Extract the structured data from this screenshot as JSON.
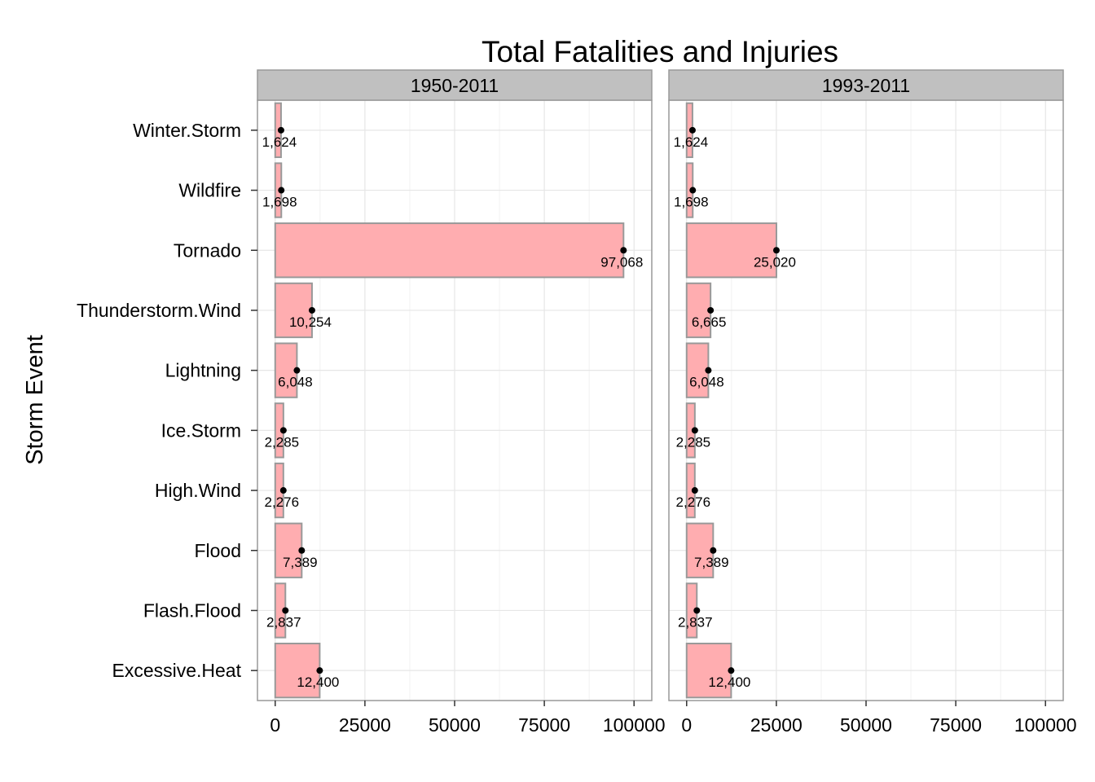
{
  "chart_data": {
    "type": "bar",
    "orientation": "horizontal",
    "title": "Total Fatalities and Injuries",
    "xlabel": "",
    "ylabel": "Storm Event",
    "xlim": [
      0,
      100000
    ],
    "x_ticks": [
      "0",
      "25000",
      "50000",
      "75000",
      "100000"
    ],
    "grid": true,
    "categories": [
      "Winter.Storm",
      "Wildfire",
      "Tornado",
      "Thunderstorm.Wind",
      "Lightning",
      "Ice.Storm",
      "High.Wind",
      "Flood",
      "Flash.Flood",
      "Excessive.Heat"
    ],
    "panels": [
      {
        "label": "1950-2011",
        "values": [
          1624,
          1698,
          97068,
          10254,
          6048,
          2285,
          2276,
          7389,
          2837,
          12400
        ],
        "value_labels": [
          "1,624",
          "1,698",
          "97,068",
          "10,254",
          "6,048",
          "2,285",
          "2,276",
          "7,389",
          "2,837",
          "12,400"
        ]
      },
      {
        "label": "1993-2011",
        "values": [
          1624,
          1698,
          25020,
          6665,
          6048,
          2285,
          2276,
          7389,
          2837,
          12400
        ],
        "value_labels": [
          "1,624",
          "1,698",
          "25,020",
          "6,665",
          "6,048",
          "2,285",
          "2,276",
          "7,389",
          "2,837",
          "12,400"
        ]
      }
    ],
    "colors": {
      "bar_fill": "#ffadb0",
      "bar_stroke": "#999999",
      "strip_fill": "#c0c0c0",
      "panel_border": "#999999",
      "grid": "#e6e6e6",
      "point": "#000000",
      "text": "#000000"
    }
  }
}
